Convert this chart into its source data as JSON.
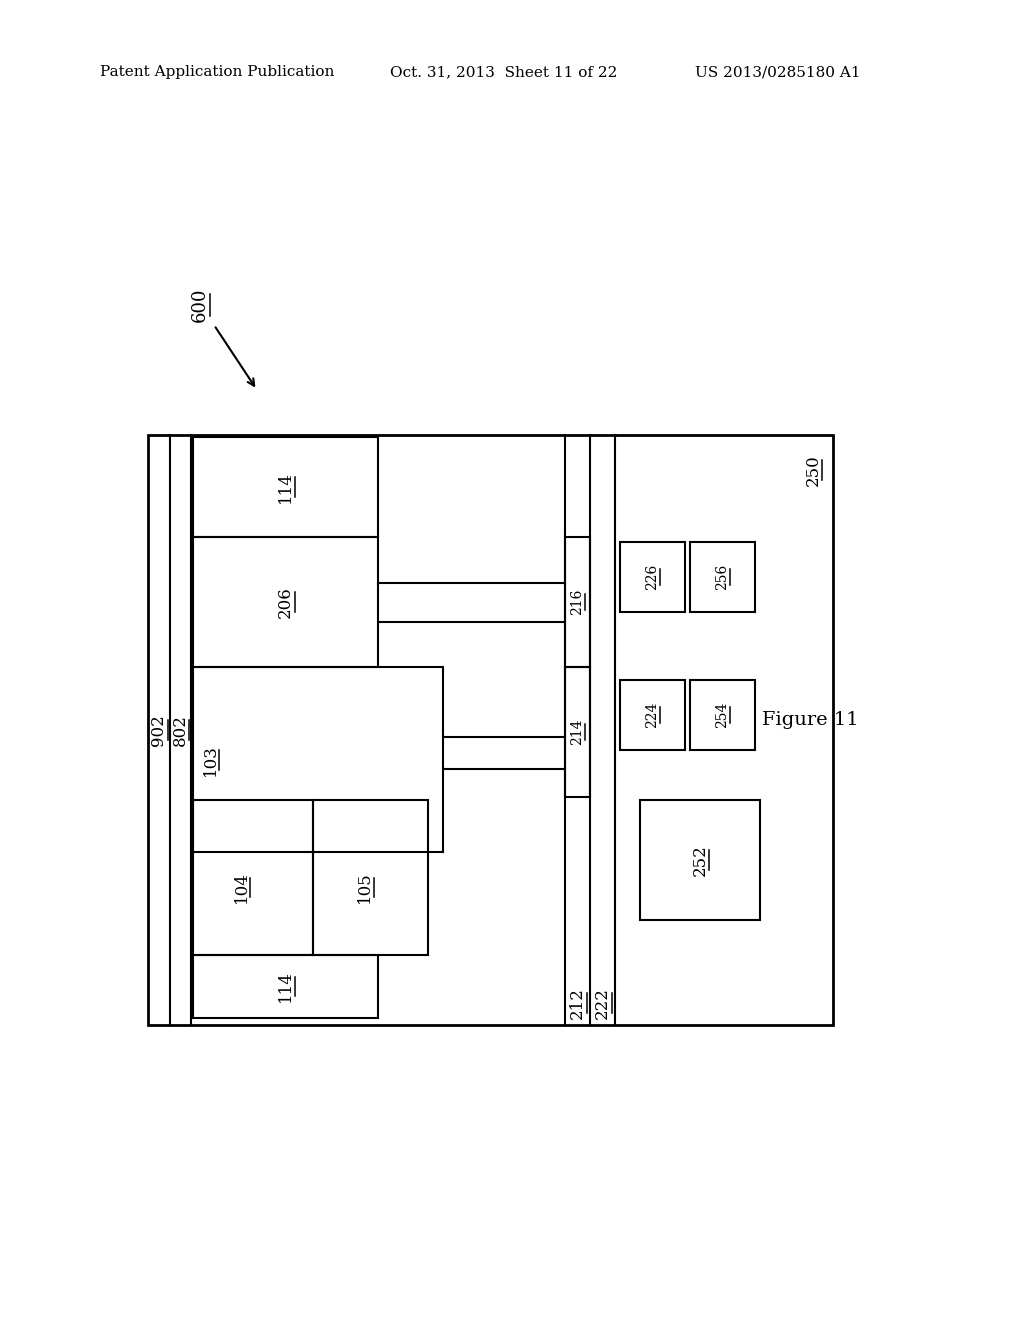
{
  "header_left": "Patent Application Publication",
  "header_mid": "Oct. 31, 2013  Sheet 11 of 22",
  "header_right": "US 2013/0285180 A1",
  "figure_label": "Figure 11",
  "diagram_ref": "600",
  "bg": "#ffffff",
  "lc": "#000000",
  "header_fontsize": 11,
  "label_fontsize": 12,
  "small_label_fontsize": 11
}
